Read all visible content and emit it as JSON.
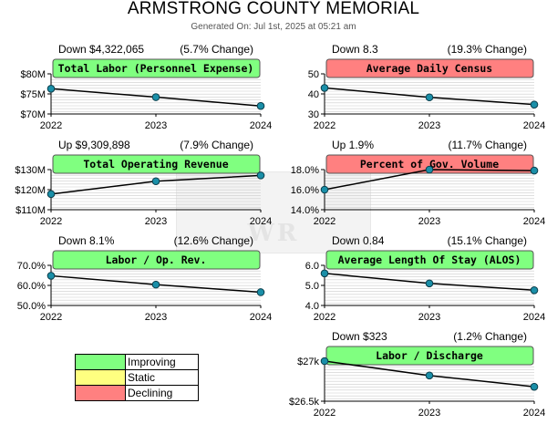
{
  "page": {
    "title": "ARMSTRONG COUNTY MEMORIAL",
    "subtitle": "Generated On: Jul 1st, 2025 at 05:21 am",
    "watermark": "WR"
  },
  "legend": [
    {
      "label": "Improving",
      "color": "#80ff80"
    },
    {
      "label": "Static",
      "color": "#ffff80"
    },
    {
      "label": "Declining",
      "color": "#ff8080"
    }
  ],
  "chart_data": [
    {
      "type": "line",
      "title": "Total Labor (Personnel Expense)",
      "status": "improving",
      "header_left": "Down $4,322,065",
      "header_right": "(5.7% Change)",
      "x": [
        "2022",
        "2023",
        "2024"
      ],
      "values": [
        76300000,
        74200000,
        72000000
      ],
      "ylim": [
        70000000,
        80000000
      ],
      "yticks": [
        70000000,
        75000000,
        80000000
      ],
      "ytick_labels": [
        "$70M",
        "$75M",
        "$80M"
      ],
      "grid": true
    },
    {
      "type": "line",
      "title": "Average Daily Census",
      "status": "declining",
      "header_left": "Down 8.3",
      "header_right": "(19.3% Change)",
      "x": [
        "2022",
        "2023",
        "2024"
      ],
      "values": [
        43.0,
        38.3,
        34.7
      ],
      "ylim": [
        30,
        50
      ],
      "yticks": [
        30,
        40,
        50
      ],
      "ytick_labels": [
        "30",
        "40",
        "50"
      ],
      "grid": true
    },
    {
      "type": "line",
      "title": "Total Operating Revenue",
      "status": "improving",
      "header_left": "Up $9,309,898",
      "header_right": "(7.9% Change)",
      "x": [
        "2022",
        "2023",
        "2024"
      ],
      "values": [
        117800000,
        124200000,
        127100000
      ],
      "ylim": [
        110000000,
        130000000
      ],
      "yticks": [
        110000000,
        120000000,
        130000000
      ],
      "ytick_labels": [
        "$110M",
        "$120M",
        "$130M"
      ],
      "grid": true
    },
    {
      "type": "line",
      "title": "Percent of Gov. Volume",
      "status": "declining",
      "header_left": "Up 1.9%",
      "header_right": "(11.7% Change)",
      "x": [
        "2022",
        "2023",
        "2024"
      ],
      "values": [
        16.0,
        18.0,
        17.9
      ],
      "ylim": [
        14,
        18
      ],
      "yticks": [
        14,
        16,
        18
      ],
      "ytick_labels": [
        "14.0%",
        "16.0%",
        "18.0%"
      ],
      "grid": true
    },
    {
      "type": "line",
      "title": "Labor / Op. Rev.",
      "status": "improving",
      "header_left": "Down 8.1%",
      "header_right": "(12.6% Change)",
      "x": [
        "2022",
        "2023",
        "2024"
      ],
      "values": [
        64.8,
        60.4,
        56.6
      ],
      "ylim": [
        50,
        70
      ],
      "yticks": [
        50,
        60,
        70
      ],
      "ytick_labels": [
        "50.0%",
        "60.0%",
        "70.0%"
      ],
      "grid": true
    },
    {
      "type": "line",
      "title": "Average Length Of Stay (ALOS)",
      "status": "improving",
      "header_left": "Down 0.84",
      "header_right": "(15.1% Change)",
      "x": [
        "2022",
        "2023",
        "2024"
      ],
      "values": [
        5.6,
        5.1,
        4.76
      ],
      "ylim": [
        4,
        6
      ],
      "yticks": [
        4,
        5,
        6
      ],
      "ytick_labels": [
        "4.0",
        "5.0",
        "6.0"
      ],
      "grid": true
    },
    {
      "type": "line",
      "title": "Labor / Discharge",
      "status": "improving",
      "header_left": "Down $323",
      "header_right": "(1.2% Change)",
      "x": [
        "2022",
        "2023",
        "2024"
      ],
      "values": [
        27000,
        26820,
        26680
      ],
      "ylim": [
        26500,
        27000
      ],
      "yticks": [
        26500,
        27000
      ],
      "ytick_labels": [
        "$26.5k",
        "$27k"
      ],
      "grid": true
    }
  ]
}
